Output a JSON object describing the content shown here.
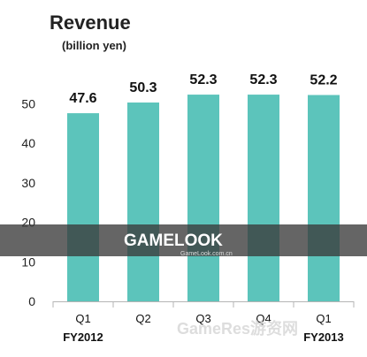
{
  "chart_data": {
    "type": "bar",
    "title": "Revenue",
    "subtitle": "(billion yen)",
    "categories": [
      "Q1",
      "Q2",
      "Q3",
      "Q4",
      "Q1"
    ],
    "values": [
      47.6,
      50.3,
      52.3,
      52.3,
      52.2
    ],
    "data_labels": [
      "47.6",
      "50.3",
      "52.3",
      "52.3",
      "52.2"
    ],
    "fiscal_year_labels": [
      "FY2012",
      "",
      "",
      "",
      "FY2013"
    ],
    "ylim": [
      0,
      55
    ],
    "yticks": [
      0,
      10,
      20,
      30,
      40,
      50
    ],
    "grid": false,
    "bar_color": "#5cc4bb"
  },
  "watermark": {
    "logo_text": "GAMELOOK",
    "logo_url_text": "GameLook.com.cn",
    "footer_text": "GameRes游资网"
  }
}
